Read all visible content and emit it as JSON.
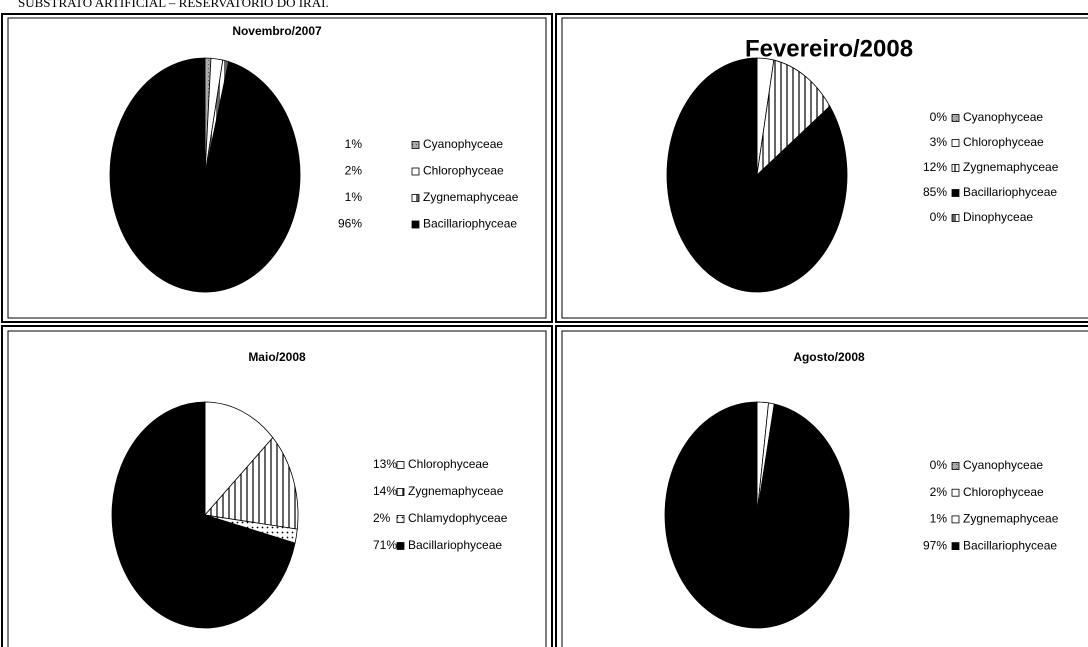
{
  "caption": "SUBSTRATO ARTIFICIAL – RESERVATÓRIO DO IRAÍ.",
  "chart_data": [
    {
      "type": "pie",
      "title": "Novembro/2007",
      "categories": [
        "Cyanophyceae",
        "Chlorophyceae",
        "Zygnemaphyceae",
        "Bacillariophyceae"
      ],
      "values": [
        1,
        2,
        1,
        96
      ],
      "value_labels": [
        "1%",
        "2%",
        "1%",
        "96%"
      ],
      "fills": [
        "gray",
        "white",
        "half",
        "black"
      ],
      "legend": "right"
    },
    {
      "type": "pie",
      "title": "Fevereiro/2008",
      "categories": [
        "Cyanophyceae",
        "Chlorophyceae",
        "Zygnemaphyceae",
        "Bacillariophyceae",
        "Dinophyceae"
      ],
      "values": [
        0,
        3,
        12,
        85,
        0
      ],
      "value_labels": [
        "0%",
        "3%",
        "12%",
        "85%",
        "0%"
      ],
      "fills": [
        "gray",
        "white",
        "stripes",
        "black",
        "half"
      ],
      "legend": "right"
    },
    {
      "type": "pie",
      "title": "Maio/2008",
      "categories": [
        "Chlorophyceae",
        "Zygnemaphyceae",
        "Chlamydophyceae",
        "Bacillariophyceae"
      ],
      "values": [
        13,
        14,
        2,
        71
      ],
      "value_labels": [
        "13%",
        "14%",
        "2%",
        "71%"
      ],
      "fills": [
        "white",
        "stripes",
        "dots",
        "black"
      ],
      "legend": "right"
    },
    {
      "type": "pie",
      "title": "Agosto/2008",
      "categories": [
        "Cyanophyceae",
        "Chlorophyceae",
        "Zygnemaphyceae",
        "Bacillariophyceae"
      ],
      "values": [
        0,
        2,
        1,
        97
      ],
      "value_labels": [
        "0%",
        "2%",
        "1%",
        "97%"
      ],
      "fills": [
        "gray",
        "white",
        "white",
        "black"
      ],
      "legend": "right"
    }
  ]
}
